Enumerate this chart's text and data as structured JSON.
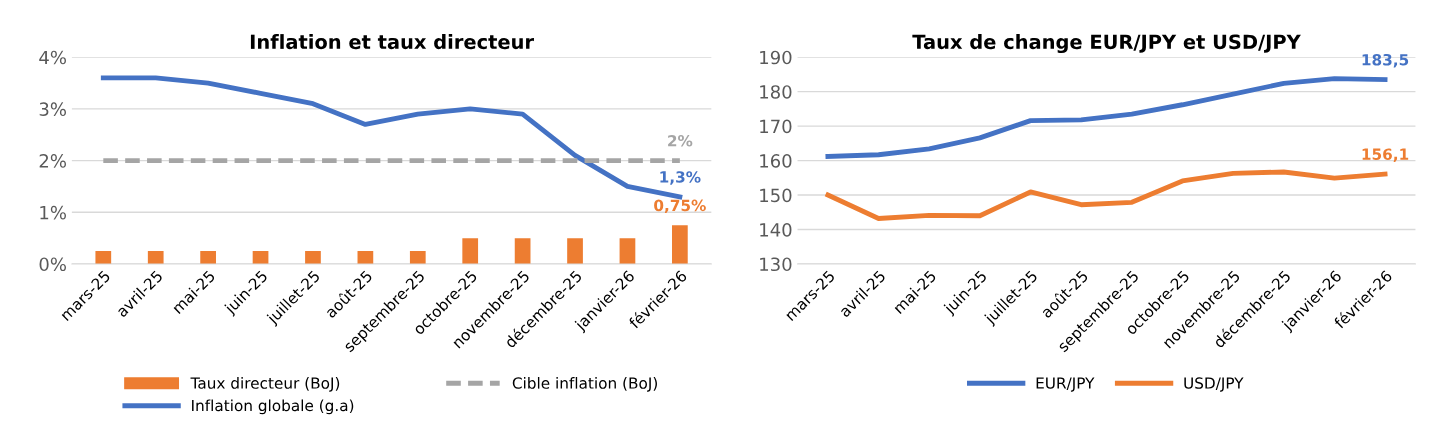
{
  "chart_data": [
    {
      "type": "bar",
      "title": "Inflation et taux directeur",
      "categories": [
        "mars-25",
        "avril-25",
        "mai-25",
        "juin-25",
        "juillet-25",
        "août-25",
        "septembre-25",
        "octobre-25",
        "novembre-25",
        "décembre-25",
        "janvier-26",
        "février-26"
      ],
      "series": [
        {
          "name": "Taux directeur (BoJ)",
          "type": "bar",
          "color": "#ed7d31",
          "values": [
            0.25,
            0.25,
            0.25,
            0.25,
            0.25,
            0.25,
            0.25,
            0.5,
            0.5,
            0.5,
            0.5,
            0.75
          ],
          "value_labels": [
            null,
            null,
            null,
            null,
            null,
            null,
            null,
            null,
            null,
            null,
            null,
            "0,75%"
          ]
        },
        {
          "name": "Inflation globale (g.a)",
          "type": "line",
          "color": "#4472c4",
          "line_style": "solid",
          "values": [
            3.6,
            3.6,
            3.5,
            3.3,
            3.1,
            2.7,
            2.9,
            3.0,
            2.9,
            2.1,
            1.5,
            1.3
          ],
          "value_labels": [
            null,
            null,
            null,
            null,
            null,
            null,
            null,
            null,
            null,
            null,
            null,
            "1,3%"
          ]
        },
        {
          "name": "Cible inflation (BoJ)",
          "type": "line",
          "color": "#a5a5a5",
          "line_style": "dashed",
          "values": [
            2,
            2,
            2,
            2,
            2,
            2,
            2,
            2,
            2,
            2,
            2,
            2
          ],
          "value_labels": [
            null,
            null,
            null,
            null,
            null,
            null,
            null,
            null,
            null,
            null,
            null,
            "2%"
          ]
        }
      ],
      "ylim": [
        0,
        4
      ],
      "yticks": [
        {
          "value": 0,
          "label": "0%"
        },
        {
          "value": 1,
          "label": "1%"
        },
        {
          "value": 2,
          "label": "2%"
        },
        {
          "value": 3,
          "label": "3%"
        },
        {
          "value": 4,
          "label": "4%"
        }
      ],
      "grid": "y",
      "legend": "bottom",
      "marker": "none"
    },
    {
      "type": "line",
      "title": "Taux de change EUR/JPY et USD/JPY",
      "categories": [
        "mars-25",
        "avril-25",
        "mai-25",
        "juin-25",
        "juillet-25",
        "août-25",
        "septembre-25",
        "octobre-25",
        "novembre-25",
        "décembre-25",
        "janvier-26",
        "février-26"
      ],
      "series": [
        {
          "name": "EUR/JPY",
          "color": "#4472c4",
          "values": [
            161.2,
            161.7,
            163.4,
            166.6,
            171.6,
            171.8,
            173.5,
            176.2,
            179.3,
            182.4,
            183.8,
            183.5
          ],
          "value_labels": [
            null,
            null,
            null,
            null,
            null,
            null,
            null,
            null,
            null,
            null,
            null,
            "183,5"
          ]
        },
        {
          "name": "USD/JPY",
          "color": "#ed7d31",
          "values": [
            150,
            143.2,
            144.1,
            144.0,
            150.9,
            147.2,
            147.9,
            154.1,
            156.3,
            156.7,
            154.9,
            156.1
          ],
          "value_labels": [
            null,
            null,
            null,
            null,
            null,
            null,
            null,
            null,
            null,
            null,
            null,
            "156,1"
          ]
        }
      ],
      "ylim": [
        130,
        190
      ],
      "yticks": [
        130,
        140,
        150,
        160,
        170,
        180,
        190
      ],
      "grid": "y",
      "legend": "bottom",
      "marker": "none",
      "line_style": "solid"
    }
  ]
}
